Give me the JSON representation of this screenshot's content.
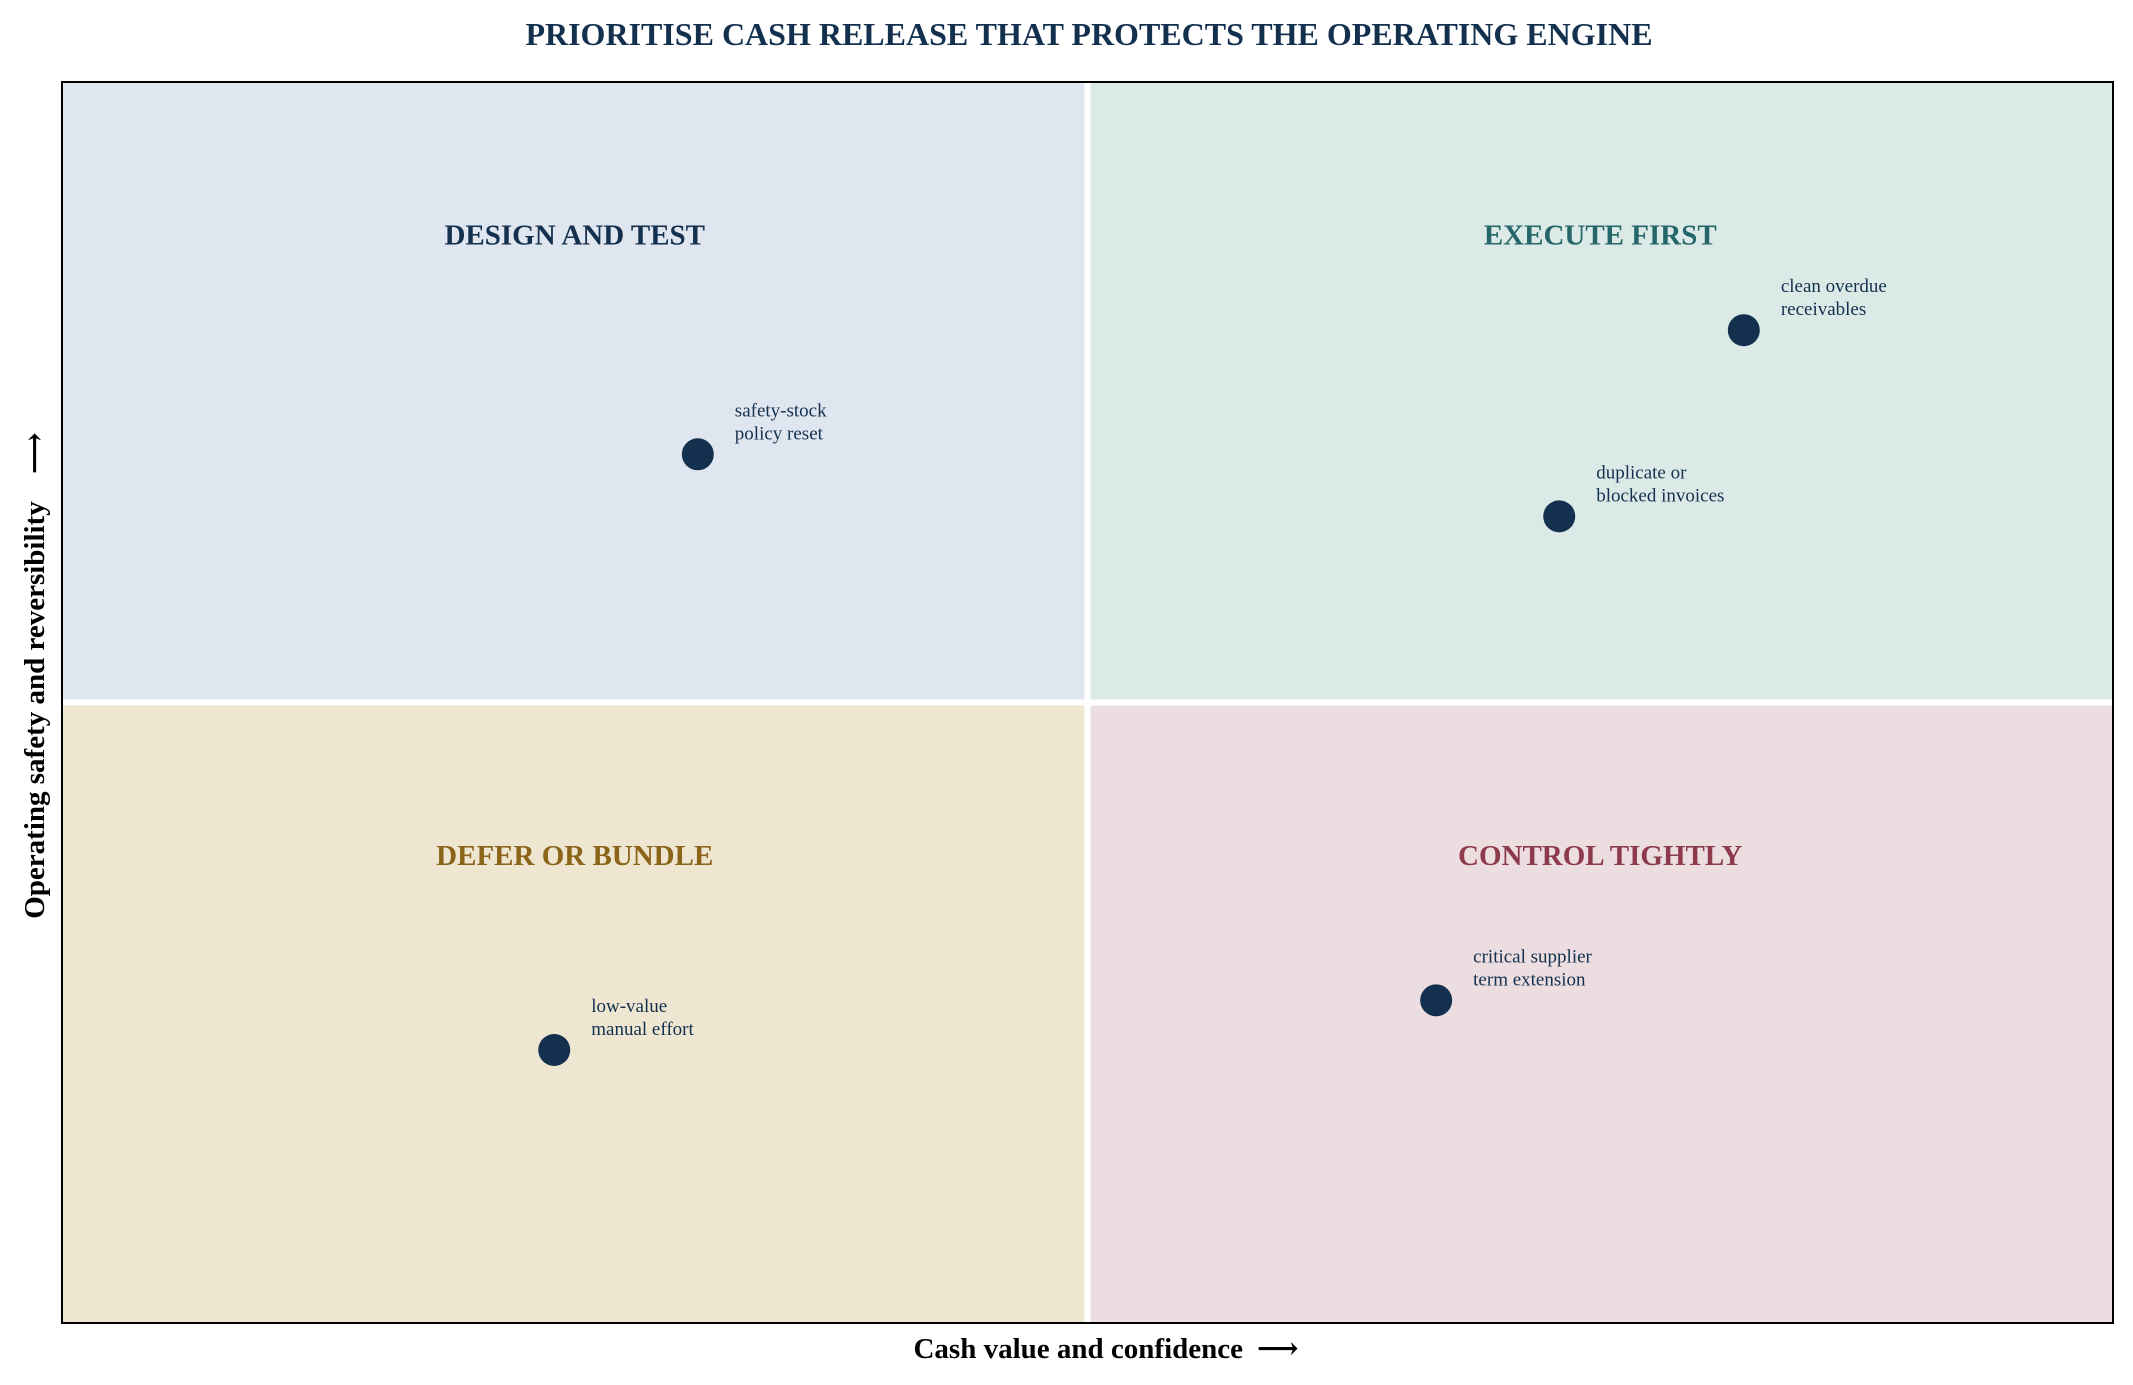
{
  "chart_data": {
    "type": "scatter",
    "title": "PRIORITISE CASH RELEASE THAT PROTECTS THE OPERATING ENGINE",
    "xlabel": "Cash value and confidence",
    "ylabel": "Operating safety and reversibility",
    "xlim": [
      0,
      10
    ],
    "ylim": [
      0,
      10
    ],
    "divider_x": 5,
    "divider_y": 5,
    "grid": false,
    "quadrants": [
      {
        "label": "DESIGN AND TEST",
        "position": "top-left",
        "fill": "#e0e6f0",
        "label_color": "#13304f"
      },
      {
        "label": "EXECUTE FIRST",
        "position": "top-right",
        "fill": "#dceae7",
        "label_color": "#25666a"
      },
      {
        "label": "DEFER OR BUNDLE",
        "position": "bottom-left",
        "fill": "#efe6d2",
        "label_color": "#8a6418"
      },
      {
        "label": "CONTROL TIGHTLY",
        "position": "bottom-right",
        "fill": "#ebdde0",
        "label_color": "#8c3a4c"
      }
    ],
    "points": [
      {
        "lines": [
          "clean overdue",
          "receivables"
        ],
        "x": 8.2,
        "y": 8.0
      },
      {
        "lines": [
          "duplicate or",
          "blocked invoices"
        ],
        "x": 7.3,
        "y": 6.5
      },
      {
        "lines": [
          "safety-stock",
          "policy reset"
        ],
        "x": 3.1,
        "y": 7.0
      },
      {
        "lines": [
          "critical supplier",
          "term extension"
        ],
        "x": 6.7,
        "y": 2.6
      },
      {
        "lines": [
          "low-value",
          "manual effort"
        ],
        "x": 2.4,
        "y": 2.2
      }
    ],
    "colors": {
      "point": "#13304f",
      "frame": "#000000",
      "divider": "#ffffff",
      "title": "#13304f"
    }
  }
}
